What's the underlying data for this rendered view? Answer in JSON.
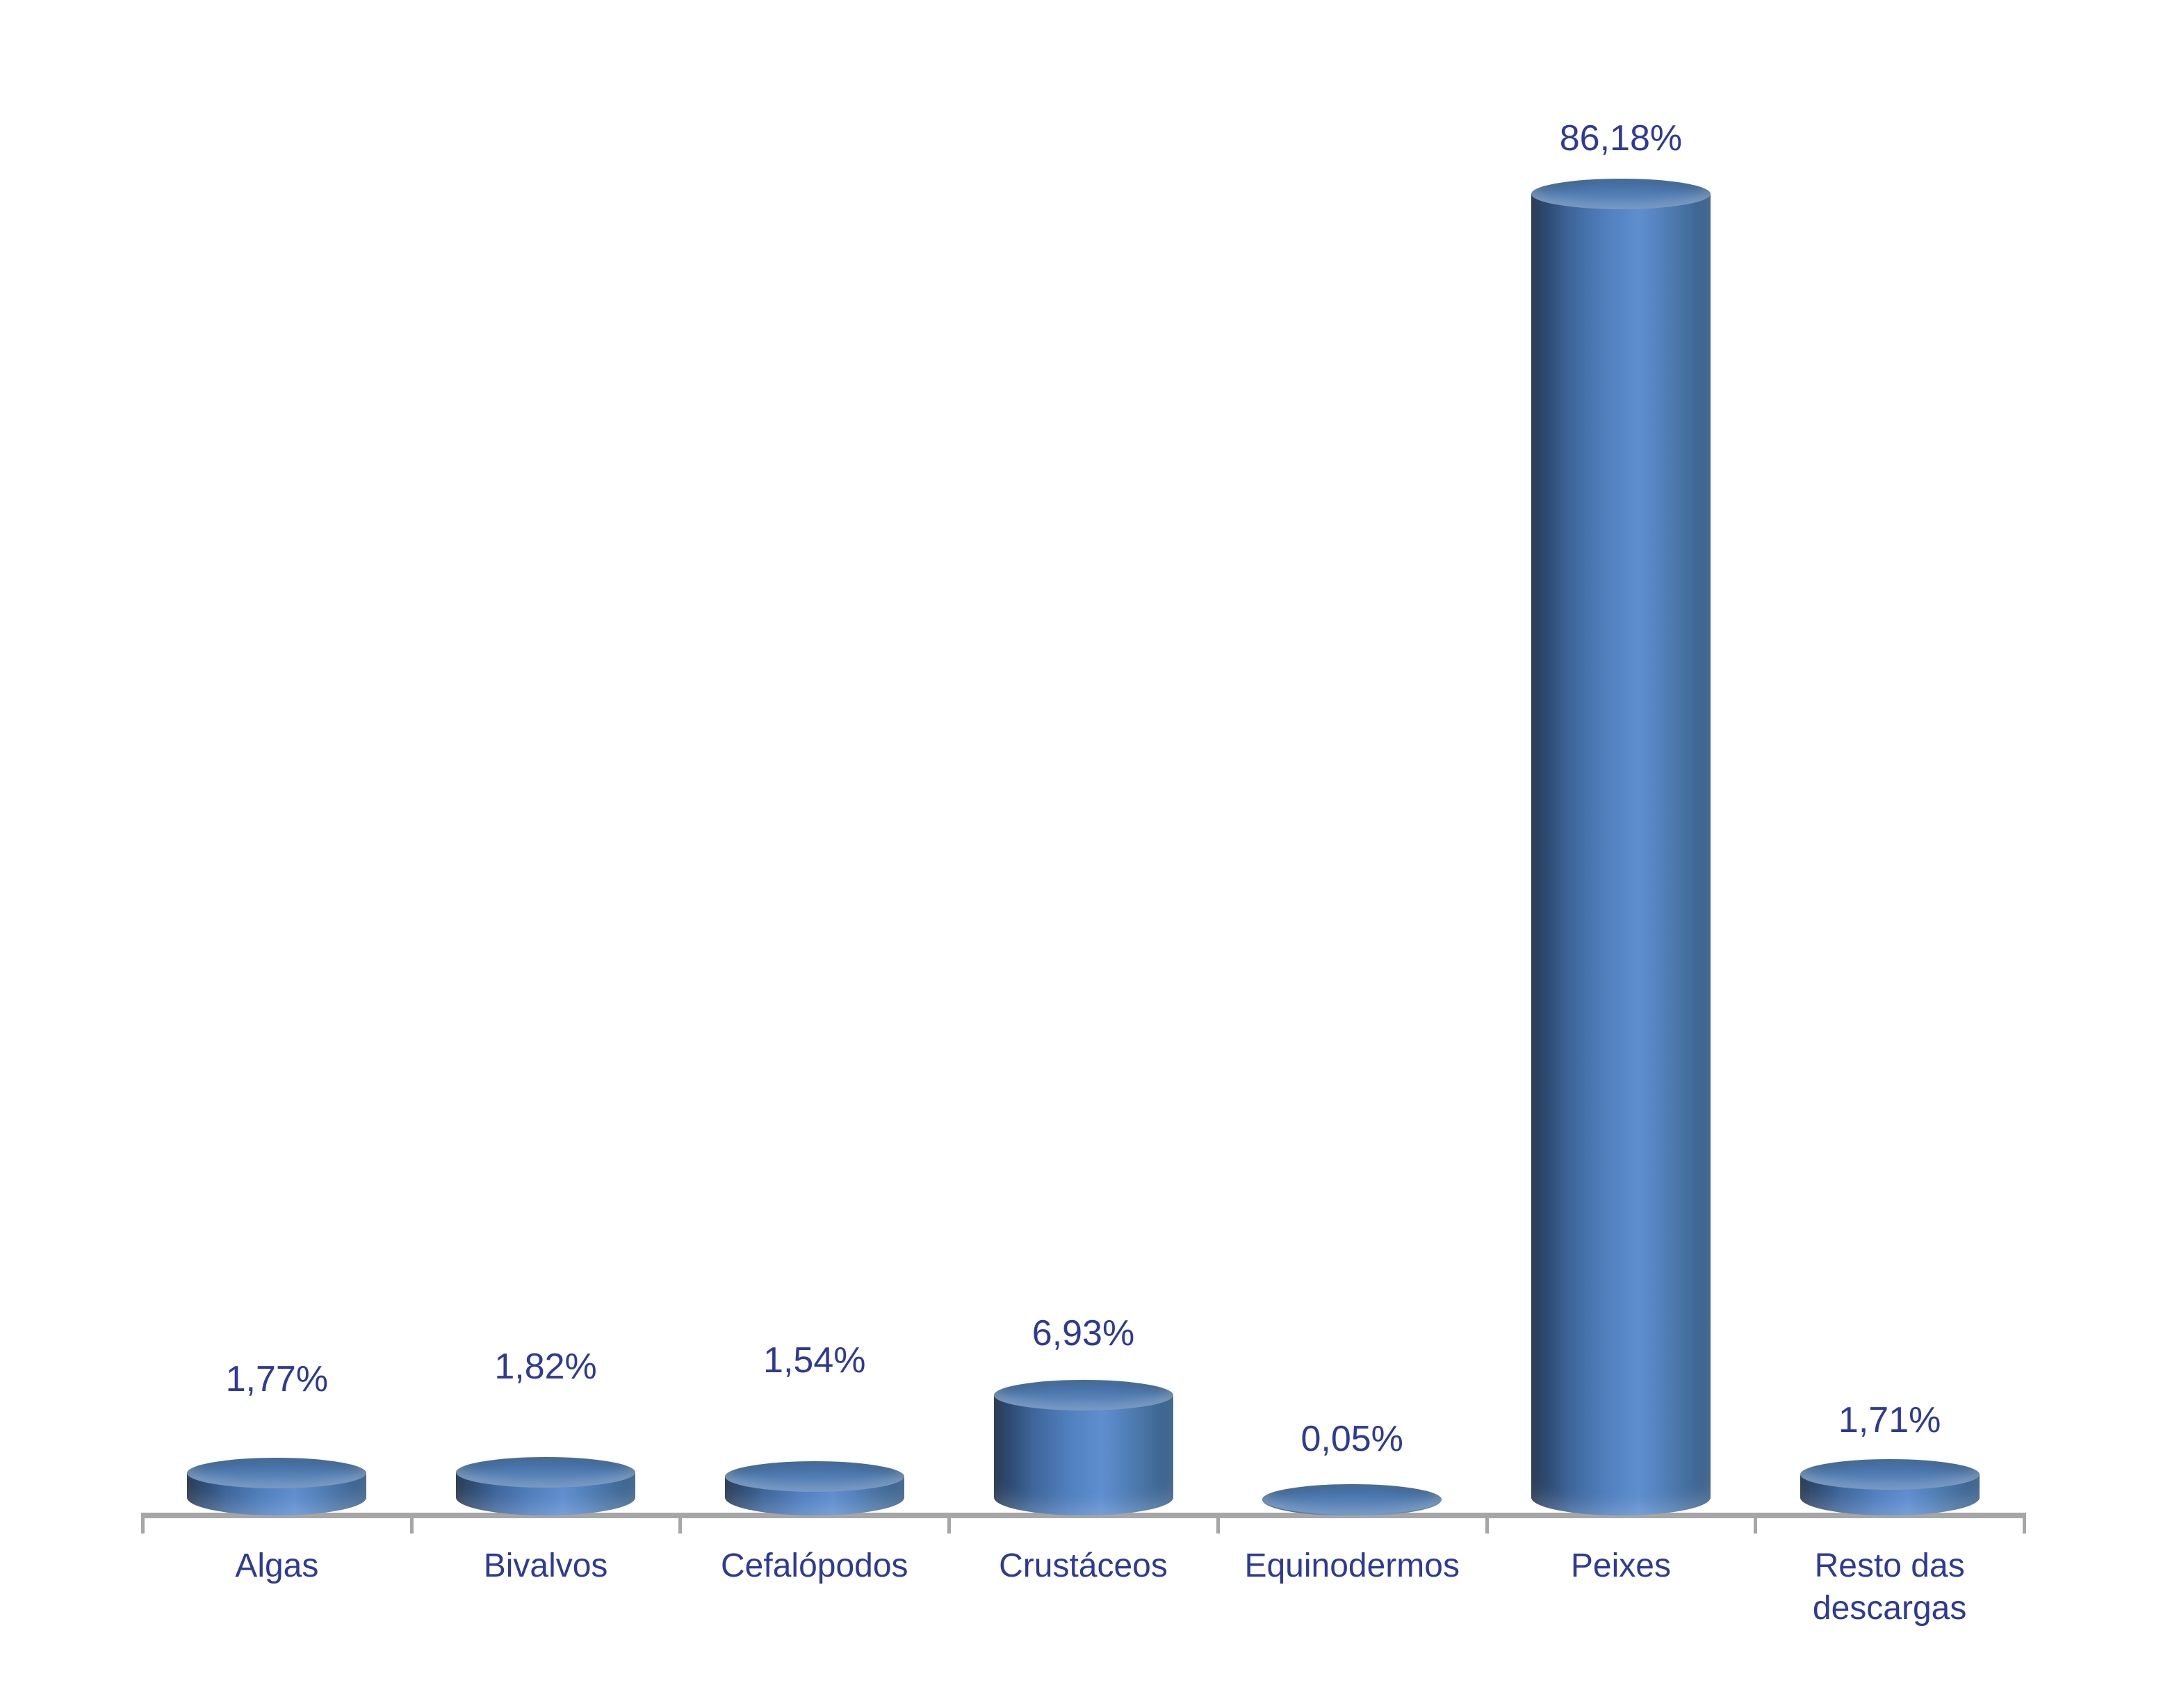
{
  "chart_data": {
    "type": "bar",
    "variant": "3d-cylinder",
    "title": "",
    "xlabel": "",
    "ylabel": "",
    "categories": [
      "Algas",
      "Bivalvos",
      "Cefalópodos",
      "Crustáceos",
      "Equinodermos",
      "Peixes",
      "Resto das descargas"
    ],
    "values": [
      1.77,
      1.82,
      1.54,
      6.93,
      0.05,
      86.18,
      1.71
    ],
    "data_labels": [
      "1,77%",
      "1,82%",
      "1,54%",
      "6,93%",
      "0,05%",
      "86,18%",
      "1,71%"
    ],
    "value_unit": "%",
    "decimal_separator": ",",
    "ylim": [
      0,
      90
    ],
    "grid": false,
    "legend": "none",
    "bar_color": "#4a76ad",
    "bar_highlight_color": "#5f8ecf",
    "bar_shadow_color": "#1d2d45",
    "label_color": "#2e3a96",
    "axis_color": "#a6a6a6",
    "background_color": "#ffffff"
  }
}
